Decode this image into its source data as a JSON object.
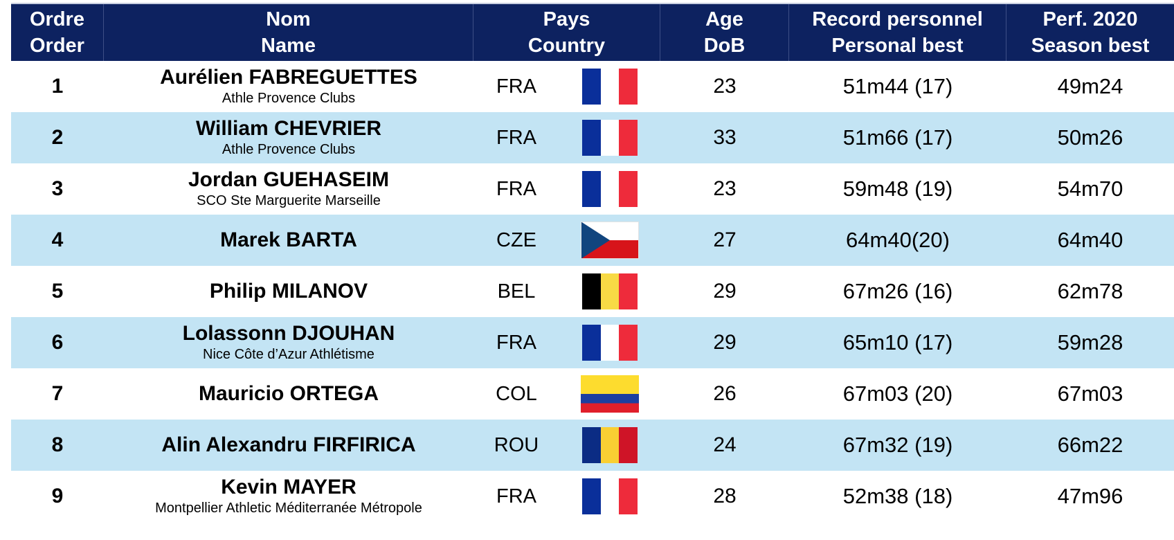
{
  "headers": {
    "order": [
      "Ordre",
      "Order"
    ],
    "name": [
      "Nom",
      "Name"
    ],
    "country": [
      "Pays",
      "Country"
    ],
    "age": [
      "Age",
      "DoB"
    ],
    "pb": [
      "Record personnel",
      "Personal best"
    ],
    "sb": [
      "Perf. 2020",
      "Season best"
    ]
  },
  "rows": [
    {
      "order": "1",
      "name": "Aurélien FABREGUETTES",
      "club": "Athle Provence Clubs",
      "code": "FRA",
      "flag": "france-flag",
      "age": "23",
      "pb": "51m44 (17)",
      "sb": "49m24"
    },
    {
      "order": "2",
      "name": "William CHEVRIER",
      "club": "Athle Provence Clubs",
      "code": "FRA",
      "flag": "france-flag",
      "age": "33",
      "pb": "51m66 (17)",
      "sb": "50m26"
    },
    {
      "order": "3",
      "name": "Jordan GUEHASEIM",
      "club": "SCO Ste Marguerite Marseille",
      "code": "FRA",
      "flag": "france-flag",
      "age": "23",
      "pb": "59m48 (19)",
      "sb": "54m70"
    },
    {
      "order": "4",
      "name": "Marek BARTA",
      "club": "",
      "code": "CZE",
      "flag": "czech-flag",
      "age": "27",
      "pb": "64m40(20)",
      "sb": "64m40"
    },
    {
      "order": "5",
      "name": "Philip MILANOV",
      "club": "",
      "code": "BEL",
      "flag": "belgium-flag",
      "age": "29",
      "pb": "67m26 (16)",
      "sb": "62m78"
    },
    {
      "order": "6",
      "name": "Lolassonn DJOUHAN",
      "club": "Nice Côte d’Azur Athlétisme",
      "code": "FRA",
      "flag": "france-flag",
      "age": "29",
      "pb": "65m10 (17)",
      "sb": "59m28"
    },
    {
      "order": "7",
      "name": "Mauricio ORTEGA",
      "club": "",
      "code": "COL",
      "flag": "colombia-flag",
      "age": "26",
      "pb": "67m03 (20)",
      "sb": "67m03"
    },
    {
      "order": "8",
      "name": "Alin Alexandru FIRFIRICA",
      "club": "",
      "code": "ROU",
      "flag": "romania-flag",
      "age": "24",
      "pb": "67m32 (19)",
      "sb": "66m22"
    },
    {
      "order": "9",
      "name": "Kevin MAYER",
      "club": "Montpellier Athletic Méditerranée Métropole",
      "code": "FRA",
      "flag": "france-flag",
      "age": "28",
      "pb": "52m38 (18)",
      "sb": "47m96"
    }
  ]
}
